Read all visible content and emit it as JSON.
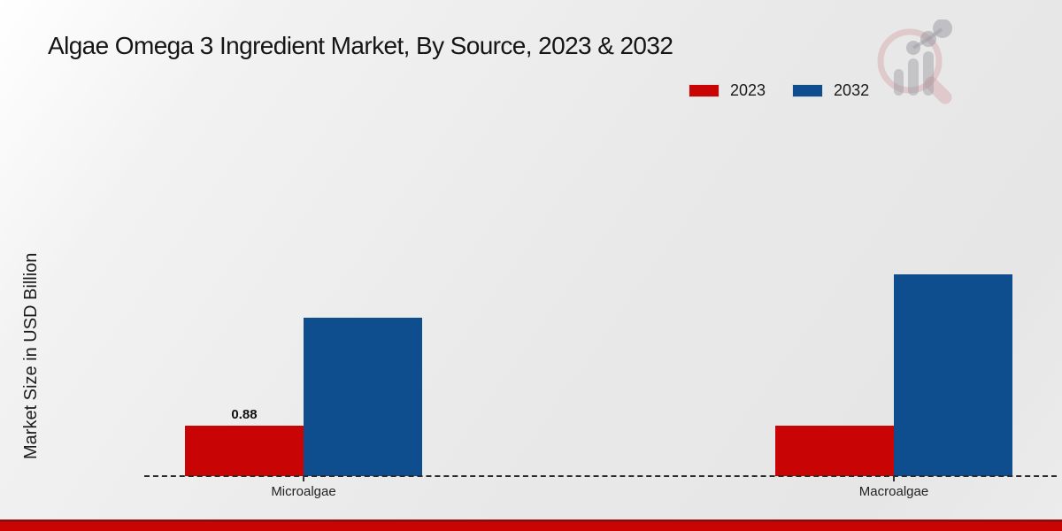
{
  "header": {
    "title": "Algae Omega 3 Ingredient Market, By Source, 2023 & 2032"
  },
  "branding": {
    "logo_icon": "magnifier-bar-chart-logo"
  },
  "legend": {
    "items": [
      {
        "label": "2023",
        "color": "#C90404"
      },
      {
        "label": "2032",
        "color": "#0F4E8E"
      }
    ]
  },
  "chart_data": {
    "type": "bar",
    "title": "Algae Omega 3 Ingredient Market, By Source, 2023 & 2032",
    "xlabel": "",
    "ylabel": "Market Size in USD Billion",
    "categories": [
      "Microalgae",
      "Macroalgae"
    ],
    "series": [
      {
        "name": "2023",
        "color": "#C90404",
        "values": [
          0.88,
          0.88
        ]
      },
      {
        "name": "2032",
        "color": "#0F4E8E",
        "values": [
          2.75,
          3.5
        ]
      }
    ],
    "value_labels": [
      {
        "text": "0.88",
        "category_index": 0,
        "series_index": 0
      }
    ],
    "ylim": [
      0,
      4
    ],
    "grid": false,
    "legend_position": "top-right",
    "baseline_style": "dashed"
  },
  "footer": {
    "band_color": "#CC0303"
  }
}
